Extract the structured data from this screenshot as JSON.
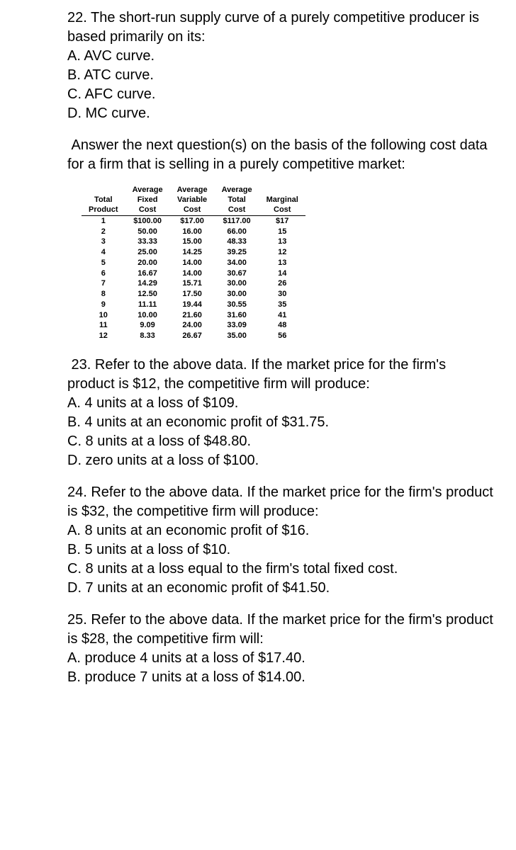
{
  "q22": {
    "stem": "22. The short-run supply curve of a purely competitive producer is based primarily on its:",
    "a": "A. AVC curve.",
    "b": "B. ATC curve.",
    "c": "C. AFC curve.",
    "d": "D. MC curve."
  },
  "transition": " Answer the next question(s) on the basis of the following cost data for a firm that is selling in a purely competitive market:",
  "table": {
    "headers": {
      "h1a": "",
      "h1b": "Average",
      "h1c": "Average",
      "h1d": "Average",
      "h1e": "",
      "h2a": "Total",
      "h2b": "Fixed",
      "h2c": "Variable",
      "h2d": "Total",
      "h2e": "Marginal",
      "h3a": "Product",
      "h3b": "Cost",
      "h3c": "Cost",
      "h3d": "Cost",
      "h3e": "Cost"
    },
    "rows": [
      {
        "p": "1",
        "afc": "$100.00",
        "avc": "$17.00",
        "atc": "$117.00",
        "mc": "$17"
      },
      {
        "p": "2",
        "afc": "50.00",
        "avc": "16.00",
        "atc": "66.00",
        "mc": "15"
      },
      {
        "p": "3",
        "afc": "33.33",
        "avc": "15.00",
        "atc": "48.33",
        "mc": "13"
      },
      {
        "p": "4",
        "afc": "25.00",
        "avc": "14.25",
        "atc": "39.25",
        "mc": "12"
      },
      {
        "p": "5",
        "afc": "20.00",
        "avc": "14.00",
        "atc": "34.00",
        "mc": "13"
      },
      {
        "p": "6",
        "afc": "16.67",
        "avc": "14.00",
        "atc": "30.67",
        "mc": "14"
      },
      {
        "p": "7",
        "afc": "14.29",
        "avc": "15.71",
        "atc": "30.00",
        "mc": "26"
      },
      {
        "p": "8",
        "afc": "12.50",
        "avc": "17.50",
        "atc": "30.00",
        "mc": "30"
      },
      {
        "p": "9",
        "afc": "11.11",
        "avc": "19.44",
        "atc": "30.55",
        "mc": "35"
      },
      {
        "p": "10",
        "afc": "10.00",
        "avc": "21.60",
        "atc": "31.60",
        "mc": "41"
      },
      {
        "p": "11",
        "afc": "9.09",
        "avc": "24.00",
        "atc": "33.09",
        "mc": "48"
      },
      {
        "p": "12",
        "afc": "8.33",
        "avc": "26.67",
        "atc": "35.00",
        "mc": "56"
      }
    ]
  },
  "q23": {
    "stem": " 23. Refer to the above data. If the market price for the firm's product is $12, the competitive firm will produce:",
    "a": "A. 4 units at a loss of $109.",
    "b": "B. 4 units at an economic profit of $31.75.",
    "c": "C. 8 units at a loss of $48.80.",
    "d": "D. zero units at a loss of $100."
  },
  "q24": {
    "stem": "24. Refer to the above data. If the market price for the firm's product is $32, the competitive firm will produce:",
    "a": "A. 8 units at an economic profit of $16.",
    "b": "B. 5 units at a loss of $10.",
    "c": "C. 8 units at a loss equal to the firm's total fixed cost.",
    "d": "D. 7 units at an economic profit of $41.50."
  },
  "q25": {
    "stem": "25. Refer to the above data. If the market price for the firm's product is $28, the competitive firm will:",
    "a": "A. produce 4 units at a loss of $17.40.",
    "b": "B. produce 7 units at a loss of $14.00."
  }
}
